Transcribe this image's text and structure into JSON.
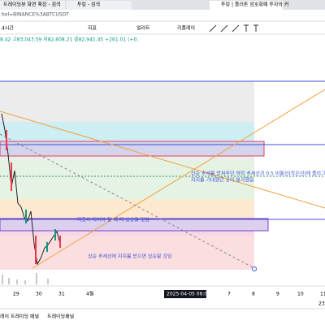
{
  "browser": {
    "tabs": [
      "트레이딩뷰 화면 확장 - 검색",
      "투링 - 검색",
      "투링 | 플러톤 암호화폐 투자와 커"
    ],
    "address": "bol=BINANCE%3ABTCUSDT"
  },
  "toolbar": {
    "items": [
      "4시간",
      "지표",
      "얼러트",
      "리플레이"
    ]
  },
  "ohlc": "8.42 고83,043.59 저82,608.21 종82,941.45 +261.01 (+0.",
  "annotations": [
    "상승 추세를 받쳐주던 하락 추세선과 0.5 비율선(작은선)에 플러그",
    "지지를 기대했던 곳이 붕괴했음",
    "저항이 되어야 할 때 지 상승할 것임",
    "상승 추세선에 지지를 받으면 상승할 것임"
  ],
  "xaxis": {
    "labels": [
      "29",
      "30",
      "31",
      "4월",
      "7",
      "8",
      "9",
      "10",
      "11"
    ],
    "cursor": "2025-04-05  06:00",
    "corner": "23"
  },
  "panel": {
    "tabs": [
      "레이 트레이딩 패널",
      "트레이딩패널"
    ]
  }
}
